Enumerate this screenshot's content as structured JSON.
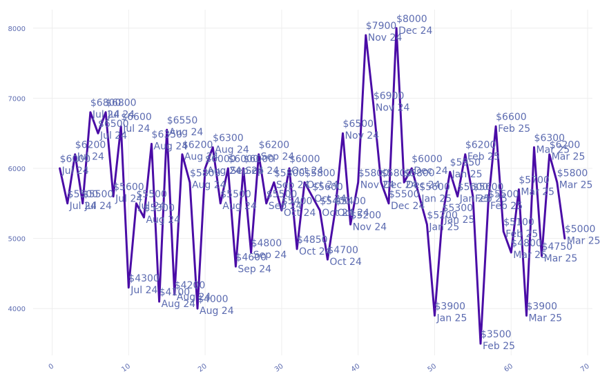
{
  "chart_data": {
    "type": "line",
    "title": "",
    "xlabel": "",
    "ylabel": "",
    "xlim": [
      -3,
      70
    ],
    "ylim": [
      3300,
      8250
    ],
    "grid": true,
    "legend": "none",
    "color": "#4a0ca6",
    "x_ticks": [
      "0",
      "10",
      "20",
      "30",
      "40",
      "50",
      "60",
      "70"
    ],
    "y_ticks": [
      "4000",
      "5000",
      "6000",
      "7000",
      "8000"
    ],
    "x_tick_values": [
      0,
      10,
      20,
      30,
      40,
      50,
      60,
      70
    ],
    "y_tick_values": [
      4000,
      5000,
      6000,
      7000,
      8000
    ],
    "series": [
      {
        "name": "value",
        "points": [
          {
            "x": 1,
            "y": 6000,
            "value": "$6000",
            "date": "Jul 24"
          },
          {
            "x": 2,
            "y": 5500,
            "value": "$5500",
            "date": "Jul 24"
          },
          {
            "x": 3,
            "y": 6200,
            "value": "$6200",
            "date": "Jul 24"
          },
          {
            "x": 4,
            "y": 5500,
            "value": "$5500",
            "date": "Jul 24"
          },
          {
            "x": 5,
            "y": 6800,
            "value": "$6800",
            "date": "Jul 24"
          },
          {
            "x": 6,
            "y": 6500,
            "value": "$6500",
            "date": "Jul 24"
          },
          {
            "x": 7,
            "y": 6800,
            "value": "$6800",
            "date": "Jul 24"
          },
          {
            "x": 8,
            "y": 5600,
            "value": "$5600",
            "date": "Jul 24"
          },
          {
            "x": 9,
            "y": 6600,
            "value": "$6600",
            "date": "Jul 24"
          },
          {
            "x": 10,
            "y": 4300,
            "value": "$4300",
            "date": "Jul 24"
          },
          {
            "x": 11,
            "y": 5500,
            "value": "$5500",
            "date": "Jul 24"
          },
          {
            "x": 12,
            "y": 5300,
            "value": "$5300",
            "date": "Aug 24"
          },
          {
            "x": 13,
            "y": 6350,
            "value": "$6350",
            "date": "Aug 24"
          },
          {
            "x": 14,
            "y": 4100,
            "value": "$4100",
            "date": "Aug 24"
          },
          {
            "x": 15,
            "y": 6550,
            "value": "$6550",
            "date": "Aug 24"
          },
          {
            "x": 16,
            "y": 4200,
            "value": "$4200",
            "date": "Aug 24"
          },
          {
            "x": 17,
            "y": 6200,
            "value": "$6200",
            "date": "Aug 24"
          },
          {
            "x": 18,
            "y": 5800,
            "value": "$5800",
            "date": "Aug 24"
          },
          {
            "x": 19,
            "y": 4000,
            "value": "$4000",
            "date": "Aug 24"
          },
          {
            "x": 20,
            "y": 6000,
            "value": "$6000",
            "date": "Aug 24"
          },
          {
            "x": 21,
            "y": 6300,
            "value": "$6300",
            "date": "Aug 24"
          },
          {
            "x": 22,
            "y": 5500,
            "value": "$5500",
            "date": "Aug 24"
          },
          {
            "x": 23,
            "y": 6000,
            "value": "$6000",
            "date": "Sep 24"
          },
          {
            "x": 24,
            "y": 4600,
            "value": "$4600",
            "date": "Sep 24"
          },
          {
            "x": 25,
            "y": 6000,
            "value": "$6000",
            "date": "Sep 24"
          },
          {
            "x": 26,
            "y": 4800,
            "value": "$4800",
            "date": "Sep 24"
          },
          {
            "x": 27,
            "y": 6200,
            "value": "$6200",
            "date": "Sep 24"
          },
          {
            "x": 28,
            "y": 5500,
            "value": "$5500",
            "date": "Sep 24"
          },
          {
            "x": 29,
            "y": 5800,
            "value": "$5800",
            "date": "Sep 24"
          },
          {
            "x": 30,
            "y": 5400,
            "value": "$5400",
            "date": "Oct 24"
          },
          {
            "x": 31,
            "y": 6000,
            "value": "$6000",
            "date": "Oct 24"
          },
          {
            "x": 32,
            "y": 4850,
            "value": "$4850",
            "date": "Oct 24"
          },
          {
            "x": 33,
            "y": 5800,
            "value": "$5800",
            "date": "Oct 24"
          },
          {
            "x": 34,
            "y": 5600,
            "value": "$5600",
            "date": "Oct 24"
          },
          {
            "x": 35,
            "y": 5400,
            "value": "$5400",
            "date": "Oct 24"
          },
          {
            "x": 36,
            "y": 4700,
            "value": "$4700",
            "date": "Oct 24"
          },
          {
            "x": 37,
            "y": 5400,
            "value": "$5400",
            "date": "Oct 24"
          },
          {
            "x": 38,
            "y": 6500,
            "value": "$6500",
            "date": "Nov 24"
          },
          {
            "x": 39,
            "y": 5200,
            "value": "$5200",
            "date": "Nov 24"
          },
          {
            "x": 40,
            "y": 5800,
            "value": "$5800",
            "date": "Nov 24"
          },
          {
            "x": 41,
            "y": 7900,
            "value": "$7900",
            "date": "Nov 24"
          },
          {
            "x": 42,
            "y": 6900,
            "value": "$6900",
            "date": "Nov 24"
          },
          {
            "x": 43,
            "y": 5800,
            "value": "$5800",
            "date": "Dec 24"
          },
          {
            "x": 44,
            "y": 5500,
            "value": "$5500",
            "date": "Dec 24"
          },
          {
            "x": 45,
            "y": 8000,
            "value": "$8000",
            "date": "Dec 24"
          },
          {
            "x": 46,
            "y": 5800,
            "value": "$5800",
            "date": "Dec 24"
          },
          {
            "x": 47,
            "y": 6000,
            "value": "$6000",
            "date": "Dec 24"
          },
          {
            "x": 48,
            "y": 5600,
            "value": "$5600",
            "date": "Jan 25"
          },
          {
            "x": 49,
            "y": 5200,
            "value": "$5200",
            "date": "Jan 25"
          },
          {
            "x": 50,
            "y": 3900,
            "value": "$3900",
            "date": "Jan 25"
          },
          {
            "x": 51,
            "y": 5300,
            "value": "$5300",
            "date": "Jan 25"
          },
          {
            "x": 52,
            "y": 5950,
            "value": "$5950",
            "date": "Jan 25"
          },
          {
            "x": 53,
            "y": 5600,
            "value": "$5600",
            "date": "Jan 25"
          },
          {
            "x": 54,
            "y": 6200,
            "value": "$6200",
            "date": "Feb 25"
          },
          {
            "x": 55,
            "y": 5600,
            "value": "$5600",
            "date": "Feb 25"
          },
          {
            "x": 56,
            "y": 3500,
            "value": "$3500",
            "date": "Feb 25"
          },
          {
            "x": 57,
            "y": 5500,
            "value": "$5500",
            "date": "Feb 25"
          },
          {
            "x": 58,
            "y": 6600,
            "value": "$6600",
            "date": "Feb 25"
          },
          {
            "x": 59,
            "y": 5100,
            "value": "$5100",
            "date": "Feb 25"
          },
          {
            "x": 60,
            "y": 4800,
            "value": "$4800",
            "date": "Mar 25"
          },
          {
            "x": 61,
            "y": 5700,
            "value": "$5700",
            "date": "Mar 25"
          },
          {
            "x": 62,
            "y": 3900,
            "value": "$3900",
            "date": "Mar 25"
          },
          {
            "x": 63,
            "y": 6300,
            "value": "$6300",
            "date": "Mar 25"
          },
          {
            "x": 64,
            "y": 4750,
            "value": "$4750",
            "date": "Mar 25"
          },
          {
            "x": 65,
            "y": 6200,
            "value": "$6200",
            "date": "Mar 25"
          },
          {
            "x": 66,
            "y": 5800,
            "value": "$5800",
            "date": "Mar 25"
          },
          {
            "x": 67,
            "y": 5000,
            "value": "$5000",
            "date": "Mar 25"
          }
        ]
      }
    ]
  }
}
